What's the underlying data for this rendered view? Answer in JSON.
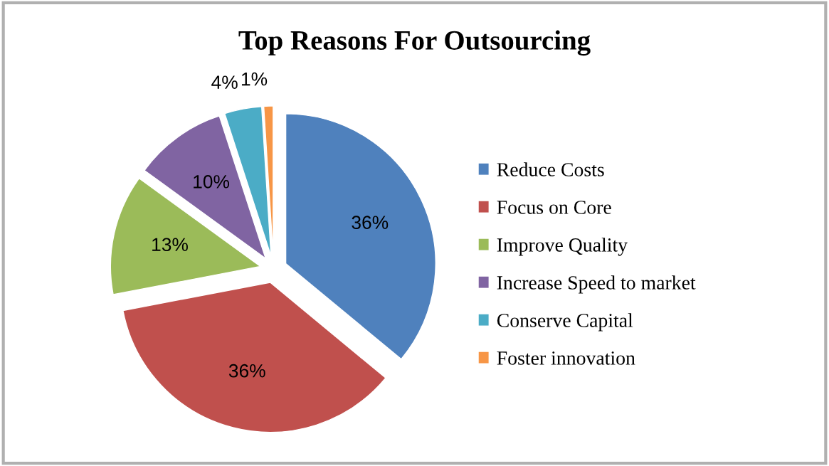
{
  "chart_data": {
    "type": "pie",
    "title": "Top Reasons For Outsourcing",
    "categories": [
      "Reduce Costs",
      "Focus on Core",
      "Improve Quality",
      "Increase Speed to market",
      "Conserve Capital",
      "Foster innovation"
    ],
    "values": [
      36,
      36,
      13,
      10,
      4,
      1
    ],
    "colors": [
      "#4f81bd",
      "#c0504d",
      "#9bbb59",
      "#8064a2",
      "#4bacc6",
      "#f79646"
    ],
    "value_labels": [
      "36%",
      "36%",
      "13%",
      "10%",
      "4%",
      "1%"
    ],
    "legend": "right"
  }
}
